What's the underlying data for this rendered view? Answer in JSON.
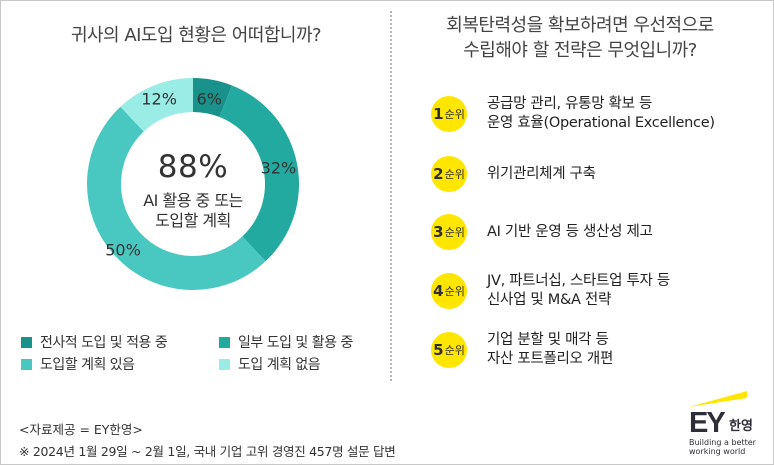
{
  "left_title": "귀사의 AI도입 현황은 어떠합니까?",
  "right_title": [
    "회복탄력성을 확보하려면 우선적으로",
    "수립해야 할 전략은 무엇입니까?"
  ],
  "chart_data": {
    "type": "pie",
    "title": "귀사의 AI도입 현황은 어떠합니까?",
    "categories": [
      "전사적 도입 및 적용 중",
      "일부 도입 및 활용 중",
      "도입할 계획 있음",
      "도입 계획 없음"
    ],
    "values": [
      6,
      32,
      50,
      12
    ],
    "value_labels": [
      "6%",
      "32%",
      "50%",
      "12%"
    ],
    "colors": [
      "#18928a",
      "#22aaa0",
      "#49c8c2",
      "#9aece6"
    ],
    "center": {
      "value": "88%",
      "caption": [
        "AI 활용 중 또는",
        "도입할 계획"
      ]
    },
    "legend_position": "bottom"
  },
  "rankings": [
    {
      "rank": "1",
      "suffix": "순위",
      "lines": [
        "공급망 관리, 유통망 확보 등",
        "운영 효율(Operational Excellence)"
      ]
    },
    {
      "rank": "2",
      "suffix": "순위",
      "lines": [
        "위기관리체계 구축"
      ]
    },
    {
      "rank": "3",
      "suffix": "순위",
      "lines": [
        "AI 기반 운영 등 생산성 제고"
      ]
    },
    {
      "rank": "4",
      "suffix": "순위",
      "lines": [
        "JV, 파트너십, 스타트업 투자 등",
        "신사업 및 M&A 전략"
      ]
    },
    {
      "rank": "5",
      "suffix": "순위",
      "lines": [
        "기업 분할 및 매각 등",
        "자산 포트폴리오 개편"
      ]
    }
  ],
  "footer": {
    "source": "<자료제공 = EY한영>",
    "note": "※ 2024년 1월 29일 ~ 2월 1일, 국내 기업 고위 경영진 457명 설문 답변"
  },
  "logo": {
    "mark": "EY",
    "korean": "한영",
    "tagline": [
      "Building a better",
      "working world"
    ],
    "accent_color": "#ffe600"
  }
}
